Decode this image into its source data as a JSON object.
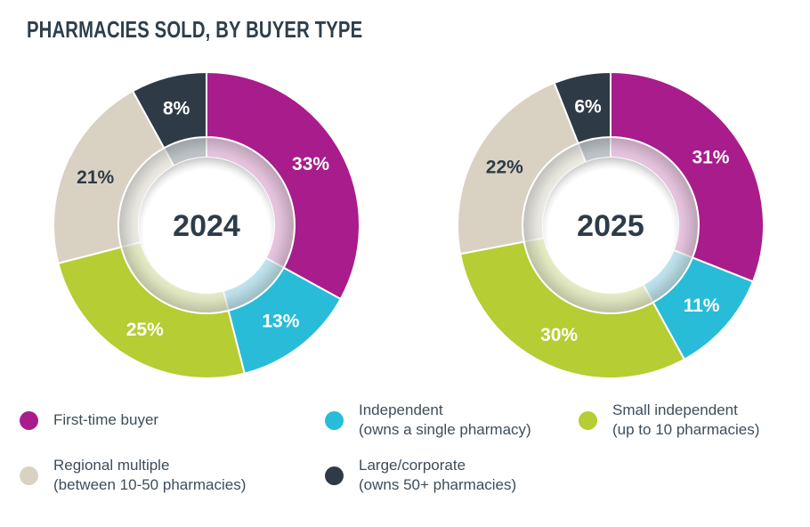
{
  "page": {
    "title": "PHARMACIES SOLD, BY BUYER TYPE",
    "title_color": "#2f3e4b",
    "background": "#ffffff",
    "text_color": "#3e4d5a"
  },
  "categories": [
    {
      "id": "first-time-buyer",
      "label": "First-time buyer",
      "sublabel": "",
      "color": "#a81c8c",
      "tint": "#ecc9e4",
      "value_label_color": "#ffffff"
    },
    {
      "id": "independent",
      "label": "Independent",
      "sublabel": "(owns a single pharmacy)",
      "color": "#28bcd8",
      "tint": "#c3e8f2",
      "value_label_color": "#ffffff"
    },
    {
      "id": "small-independent",
      "label": "Small independent",
      "sublabel": "(up to 10 pharmacies)",
      "color": "#b6cd33",
      "tint": "#eaf0c9",
      "value_label_color": "#ffffff"
    },
    {
      "id": "regional-multiple",
      "label": "Regional multiple",
      "sublabel": "(between 10-50 pharmacies)",
      "color": "#d9d2c3",
      "tint": "#f1efe8",
      "value_label_color": "#2e3b47"
    },
    {
      "id": "large-corporate",
      "label": "Large/corporate",
      "sublabel": "(owns 50+ pharmacies)",
      "color": "#2e3b47",
      "tint": "#c3c9ce",
      "value_label_color": "#ffffff"
    }
  ],
  "chart_data": [
    {
      "type": "pie",
      "subtype": "donut",
      "center_label": "2024",
      "start_angle_deg": 0,
      "direction": "clockwise",
      "unit": "%",
      "categories": [
        "First-time buyer",
        "Independent (owns a single pharmacy)",
        "Small independent (up to 10 pharmacies)",
        "Regional multiple (between 10-50 pharmacies)",
        "Large/corporate (owns 50+ pharmacies)"
      ],
      "values": [
        33,
        13,
        25,
        21,
        8
      ],
      "value_labels": [
        "33%",
        "13%",
        "25%",
        "21%",
        "8%"
      ]
    },
    {
      "type": "pie",
      "subtype": "donut",
      "center_label": "2025",
      "start_angle_deg": 0,
      "direction": "clockwise",
      "unit": "%",
      "categories": [
        "First-time buyer",
        "Independent (owns a single pharmacy)",
        "Small independent (up to 10 pharmacies)",
        "Regional multiple (between 10-50 pharmacies)",
        "Large/corporate (owns 50+ pharmacies)"
      ],
      "values": [
        31,
        11,
        30,
        22,
        6
      ],
      "value_labels": [
        "31%",
        "11%",
        "30%",
        "22%",
        "6%"
      ]
    }
  ],
  "style": {
    "center_label_color": "#2e3b48",
    "slice_separator_color": "#ffffff"
  }
}
